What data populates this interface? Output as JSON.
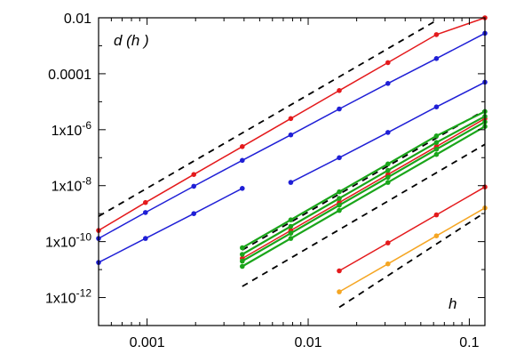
{
  "chart_data": {
    "type": "line",
    "title": "",
    "ylabel_inside": "d (h )",
    "xlabel_inside": "h",
    "x_scale": "log",
    "y_scale": "log",
    "xlim": [
      0.0005,
      0.125
    ],
    "ylim": [
      1e-13,
      0.01
    ],
    "grid": false,
    "legend": "none",
    "x_ticks": [
      {
        "value": 0.001,
        "label": "0.001"
      },
      {
        "value": 0.01,
        "label": "0.01"
      },
      {
        "value": 0.1,
        "label": "0.1"
      }
    ],
    "y_ticks": [
      {
        "value": 1e-12,
        "mant": "1x10",
        "exp": "-12"
      },
      {
        "value": 1e-10,
        "mant": "1x10",
        "exp": "-10"
      },
      {
        "value": 1e-08,
        "mant": "1x10",
        "exp": "-8"
      },
      {
        "value": 1e-06,
        "mant": "1x10",
        "exp": "-6"
      },
      {
        "value": 0.0001,
        "mant": "0.0001",
        "exp": ""
      },
      {
        "value": 0.01,
        "mant": "0.01",
        "exp": ""
      }
    ],
    "colors": {
      "red": "#e41a1c",
      "blue": "#1f1fd6",
      "green": "#1aa51a",
      "orange": "#f5a623",
      "reference": "#000000"
    },
    "series": [
      {
        "color": "red",
        "width": 1.5,
        "x": [
          0.0005,
          0.000977,
          0.00195,
          0.0039,
          0.0078,
          0.0156,
          0.03125,
          0.0625,
          0.125
        ],
        "y": [
          2.5e-10,
          2.5e-09,
          2.5e-08,
          2.5e-07,
          2.5e-06,
          2.5e-05,
          0.00025,
          0.0025,
          0.01
        ]
      },
      {
        "color": "blue",
        "width": 1.5,
        "x": [
          0.0005,
          0.000977,
          0.00195,
          0.0039,
          0.0078,
          0.0156,
          0.03125,
          0.0625,
          0.125
        ],
        "y": [
          1.3e-10,
          1.1e-09,
          9.5e-09,
          8e-08,
          6.5e-07,
          5.5e-06,
          4.5e-05,
          0.00035,
          0.0028
        ]
      },
      {
        "color": "blue",
        "width": 1.5,
        "x": [
          0.0005,
          0.000977,
          0.00195,
          0.0039
        ],
        "y": [
          1.8e-11,
          1.3e-10,
          1e-09,
          8e-09
        ]
      },
      {
        "color": "blue",
        "width": 1.5,
        "x": [
          0.0078,
          0.0156,
          0.03125,
          0.0625,
          0.125
        ],
        "y": [
          1.3e-08,
          1e-07,
          8e-07,
          6.5e-06,
          5e-05
        ]
      },
      {
        "color": "red",
        "width": 1.5,
        "x": [
          0.0039,
          0.0078,
          0.0156,
          0.03125,
          0.0625,
          0.125
        ],
        "y": [
          2.5e-11,
          2.5e-10,
          2.5e-09,
          2.5e-08,
          2.5e-07,
          2.5e-06
        ]
      },
      {
        "color": "green",
        "width": 2.2,
        "x": [
          0.0039,
          0.0078,
          0.0156,
          0.03125,
          0.0625,
          0.125
        ],
        "y": [
          1.3e-11,
          1.3e-10,
          1.3e-09,
          1.3e-08,
          1.3e-07,
          1.3e-06
        ]
      },
      {
        "color": "green",
        "width": 2.2,
        "x": [
          0.0039,
          0.0078,
          0.0156,
          0.03125,
          0.0625,
          0.125
        ],
        "y": [
          2e-11,
          2e-10,
          2e-09,
          2e-08,
          2e-07,
          1.9e-06
        ]
      },
      {
        "color": "green",
        "width": 2.2,
        "x": [
          0.0039,
          0.0078,
          0.0156,
          0.03125,
          0.0625,
          0.125
        ],
        "y": [
          3.5e-11,
          3.5e-10,
          3.5e-09,
          3.5e-08,
          3.5e-07,
          3e-06
        ]
      },
      {
        "color": "green",
        "width": 2.2,
        "x": [
          0.0039,
          0.0078,
          0.0156,
          0.03125,
          0.0625,
          0.125
        ],
        "y": [
          6e-11,
          6e-10,
          6e-09,
          6e-08,
          6e-07,
          4.5e-06
        ]
      },
      {
        "color": "red",
        "width": 1.5,
        "x": [
          0.0156,
          0.03125,
          0.0625,
          0.125
        ],
        "y": [
          9e-12,
          9e-11,
          9e-10,
          9e-09
        ]
      },
      {
        "color": "orange",
        "width": 1.5,
        "x": [
          0.0156,
          0.03125,
          0.0625,
          0.125
        ],
        "y": [
          1.6e-12,
          1.6e-11,
          1.6e-10,
          1.6e-09
        ]
      }
    ],
    "reference_lines": [
      {
        "x": [
          0.0005,
          0.0625
        ],
        "y": [
          8e-10,
          0.008
        ]
      },
      {
        "x": [
          0.0039,
          0.125
        ],
        "y": [
          5e-11,
          5e-06
        ]
      },
      {
        "x": [
          0.0039,
          0.125
        ],
        "y": [
          2.5e-12,
          3e-07
        ]
      },
      {
        "x": [
          0.0156,
          0.125
        ],
        "y": [
          4.5e-13,
          1.1e-09
        ]
      }
    ]
  }
}
